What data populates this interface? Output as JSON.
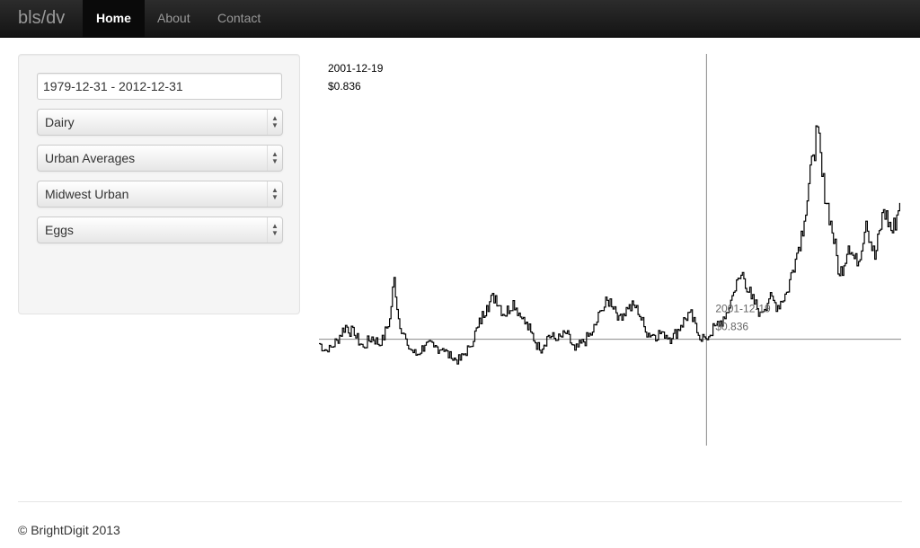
{
  "navbar": {
    "brand": "bls/dv",
    "items": [
      {
        "label": "Home",
        "active": true
      },
      {
        "label": "About",
        "active": false
      },
      {
        "label": "Contact",
        "active": false
      }
    ]
  },
  "sidebar": {
    "date_range_value": "1979-12-31 - 2012-12-31",
    "selects": [
      {
        "selected": "Dairy"
      },
      {
        "selected": "Urban Averages"
      },
      {
        "selected": "Midwest Urban"
      },
      {
        "selected": "Eggs"
      }
    ]
  },
  "chart_data": {
    "type": "line",
    "title": "",
    "xlabel": "",
    "ylabel": "",
    "x_range": [
      "1979-12-31",
      "2012-12-31"
    ],
    "ylim": [
      0.4,
      2.3
    ],
    "tooltip": {
      "date": "2001-12-19",
      "value": "$0.836"
    },
    "crosshair": {
      "date": "2001-12-19",
      "value": 0.836
    },
    "series": [
      {
        "points": [
          [
            "1980-01",
            0.81
          ],
          [
            "1980-07",
            0.76
          ],
          [
            "1981-01",
            0.83
          ],
          [
            "1981-07",
            0.92
          ],
          [
            "1982-01",
            0.86
          ],
          [
            "1982-07",
            0.79
          ],
          [
            "1983-01",
            0.85
          ],
          [
            "1983-07",
            0.8
          ],
          [
            "1984-01",
            0.96
          ],
          [
            "1984-04",
            1.21
          ],
          [
            "1984-07",
            0.96
          ],
          [
            "1985-01",
            0.8
          ],
          [
            "1985-07",
            0.74
          ],
          [
            "1986-01",
            0.8
          ],
          [
            "1986-07",
            0.79
          ],
          [
            "1987-01",
            0.78
          ],
          [
            "1987-07",
            0.72
          ],
          [
            "1988-01",
            0.71
          ],
          [
            "1988-07",
            0.79
          ],
          [
            "1989-01",
            0.91
          ],
          [
            "1989-07",
            1.04
          ],
          [
            "1990-01",
            1.1
          ],
          [
            "1990-07",
            0.98
          ],
          [
            "1991-01",
            1.07
          ],
          [
            "1991-07",
            0.96
          ],
          [
            "1992-01",
            0.88
          ],
          [
            "1992-07",
            0.77
          ],
          [
            "1993-01",
            0.86
          ],
          [
            "1993-07",
            0.83
          ],
          [
            "1994-01",
            0.87
          ],
          [
            "1994-07",
            0.77
          ],
          [
            "1995-01",
            0.82
          ],
          [
            "1995-07",
            0.88
          ],
          [
            "1996-01",
            1.01
          ],
          [
            "1996-07",
            1.08
          ],
          [
            "1997-01",
            0.98
          ],
          [
            "1997-07",
            1.02
          ],
          [
            "1998-01",
            1.04
          ],
          [
            "1998-07",
            0.88
          ],
          [
            "1999-01",
            0.86
          ],
          [
            "1999-07",
            0.88
          ],
          [
            "2000-01",
            0.84
          ],
          [
            "2000-07",
            0.92
          ],
          [
            "2001-01",
            1.0
          ],
          [
            "2001-07",
            0.86
          ],
          [
            "2001-12",
            0.84
          ],
          [
            "2002-07",
            0.92
          ],
          [
            "2003-01",
            0.96
          ],
          [
            "2003-07",
            1.12
          ],
          [
            "2004-01",
            1.24
          ],
          [
            "2004-07",
            1.08
          ],
          [
            "2005-01",
            1.0
          ],
          [
            "2005-07",
            1.08
          ],
          [
            "2006-01",
            1.04
          ],
          [
            "2006-07",
            1.12
          ],
          [
            "2007-01",
            1.32
          ],
          [
            "2007-07",
            1.55
          ],
          [
            "2008-01",
            1.95
          ],
          [
            "2008-04",
            2.12
          ],
          [
            "2008-07",
            1.82
          ],
          [
            "2009-01",
            1.55
          ],
          [
            "2009-07",
            1.22
          ],
          [
            "2010-01",
            1.4
          ],
          [
            "2010-07",
            1.28
          ],
          [
            "2011-01",
            1.55
          ],
          [
            "2011-07",
            1.32
          ],
          [
            "2012-01",
            1.62
          ],
          [
            "2012-07",
            1.48
          ],
          [
            "2012-12",
            1.66
          ]
        ]
      }
    ]
  },
  "footer": {
    "copyright": "© BrightDigit 2013"
  }
}
